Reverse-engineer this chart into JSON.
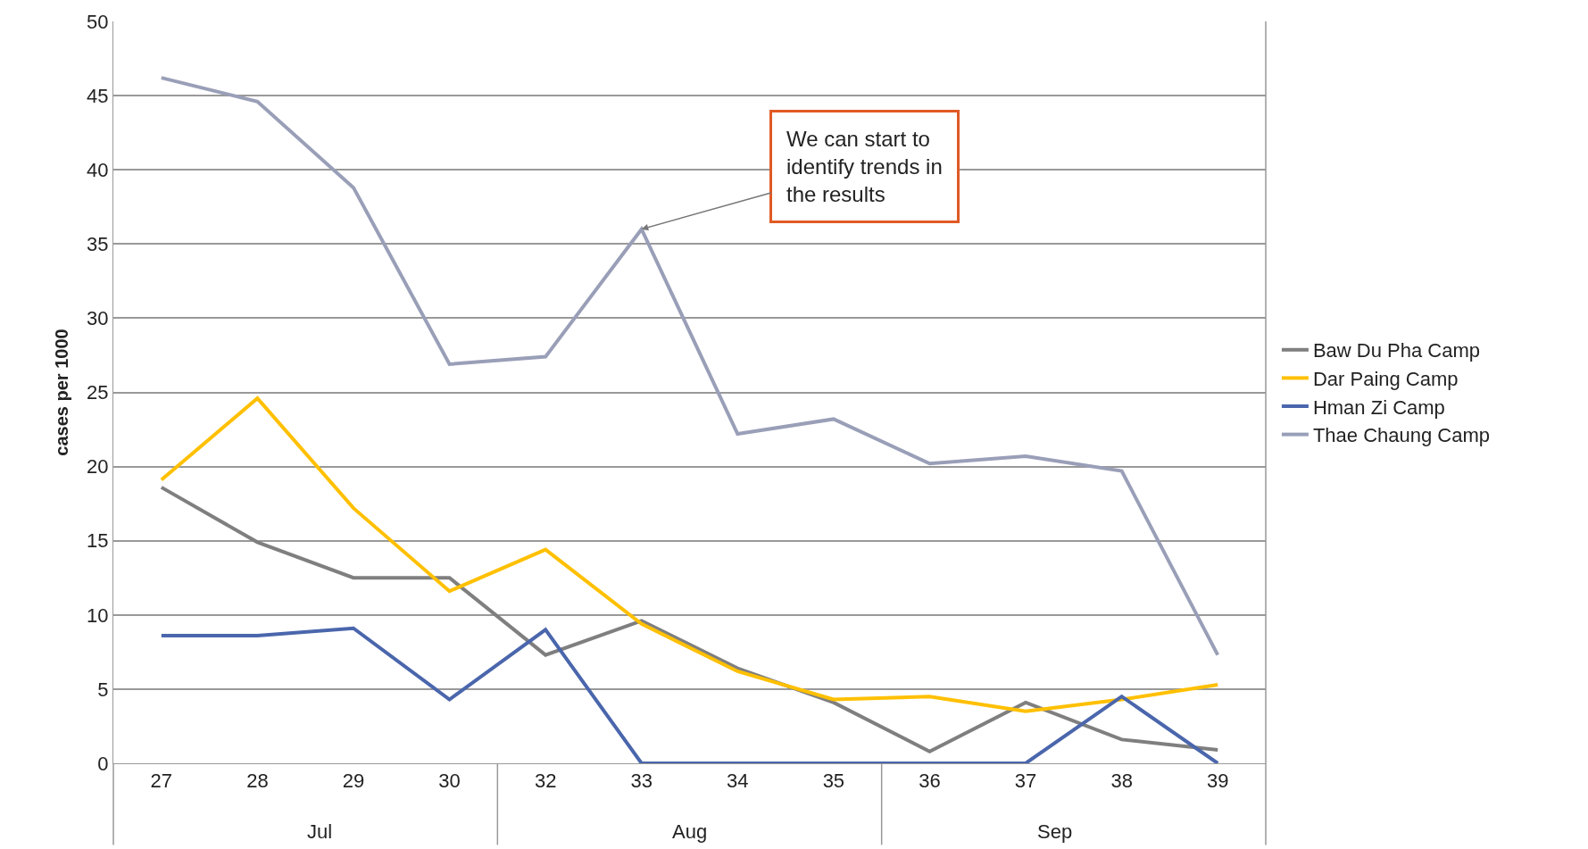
{
  "chart_data": {
    "type": "line",
    "ylabel": "cases per 1000",
    "categories": [
      "27",
      "28",
      "29",
      "30",
      "32",
      "33",
      "34",
      "35",
      "36",
      "37",
      "38",
      "39"
    ],
    "series": [
      {
        "name": "Baw Du Pha Camp",
        "color": "#7f7f7f",
        "values": [
          18.6,
          14.9,
          12.5,
          12.5,
          7.3,
          9.6,
          6.4,
          4.1,
          0.8,
          4.1,
          1.6,
          0.9
        ]
      },
      {
        "name": "Dar Paing Camp",
        "color": "#ffc000",
        "values": [
          19.1,
          24.6,
          17.2,
          11.6,
          14.4,
          9.4,
          6.2,
          4.3,
          4.5,
          3.5,
          4.3,
          5.3
        ]
      },
      {
        "name": "Hman Zi Camp",
        "color": "#4a66ac",
        "values": [
          8.6,
          8.6,
          9.1,
          4.3,
          9.0,
          0,
          0,
          0,
          0,
          0,
          4.5,
          0
        ]
      },
      {
        "name": "Thae Chaung Camp",
        "color": "#9a9fb8",
        "values": [
          46.2,
          44.6,
          38.8,
          26.9,
          27.4,
          36.0,
          22.2,
          23.2,
          20.2,
          20.7,
          19.7,
          7.3
        ]
      }
    ],
    "ylim": [
      0,
      50
    ],
    "yticks": [
      0,
      5,
      10,
      15,
      20,
      25,
      30,
      35,
      40,
      45,
      50
    ],
    "grid": "y",
    "legend": "right",
    "marker": "none",
    "line_style": "solid",
    "annotations": [
      "Jul",
      "Aug",
      "Sep",
      {
        "text": "We can start to\nidentify trends in\nthe results",
        "x": "33",
        "y": 36.0
      }
    ]
  }
}
